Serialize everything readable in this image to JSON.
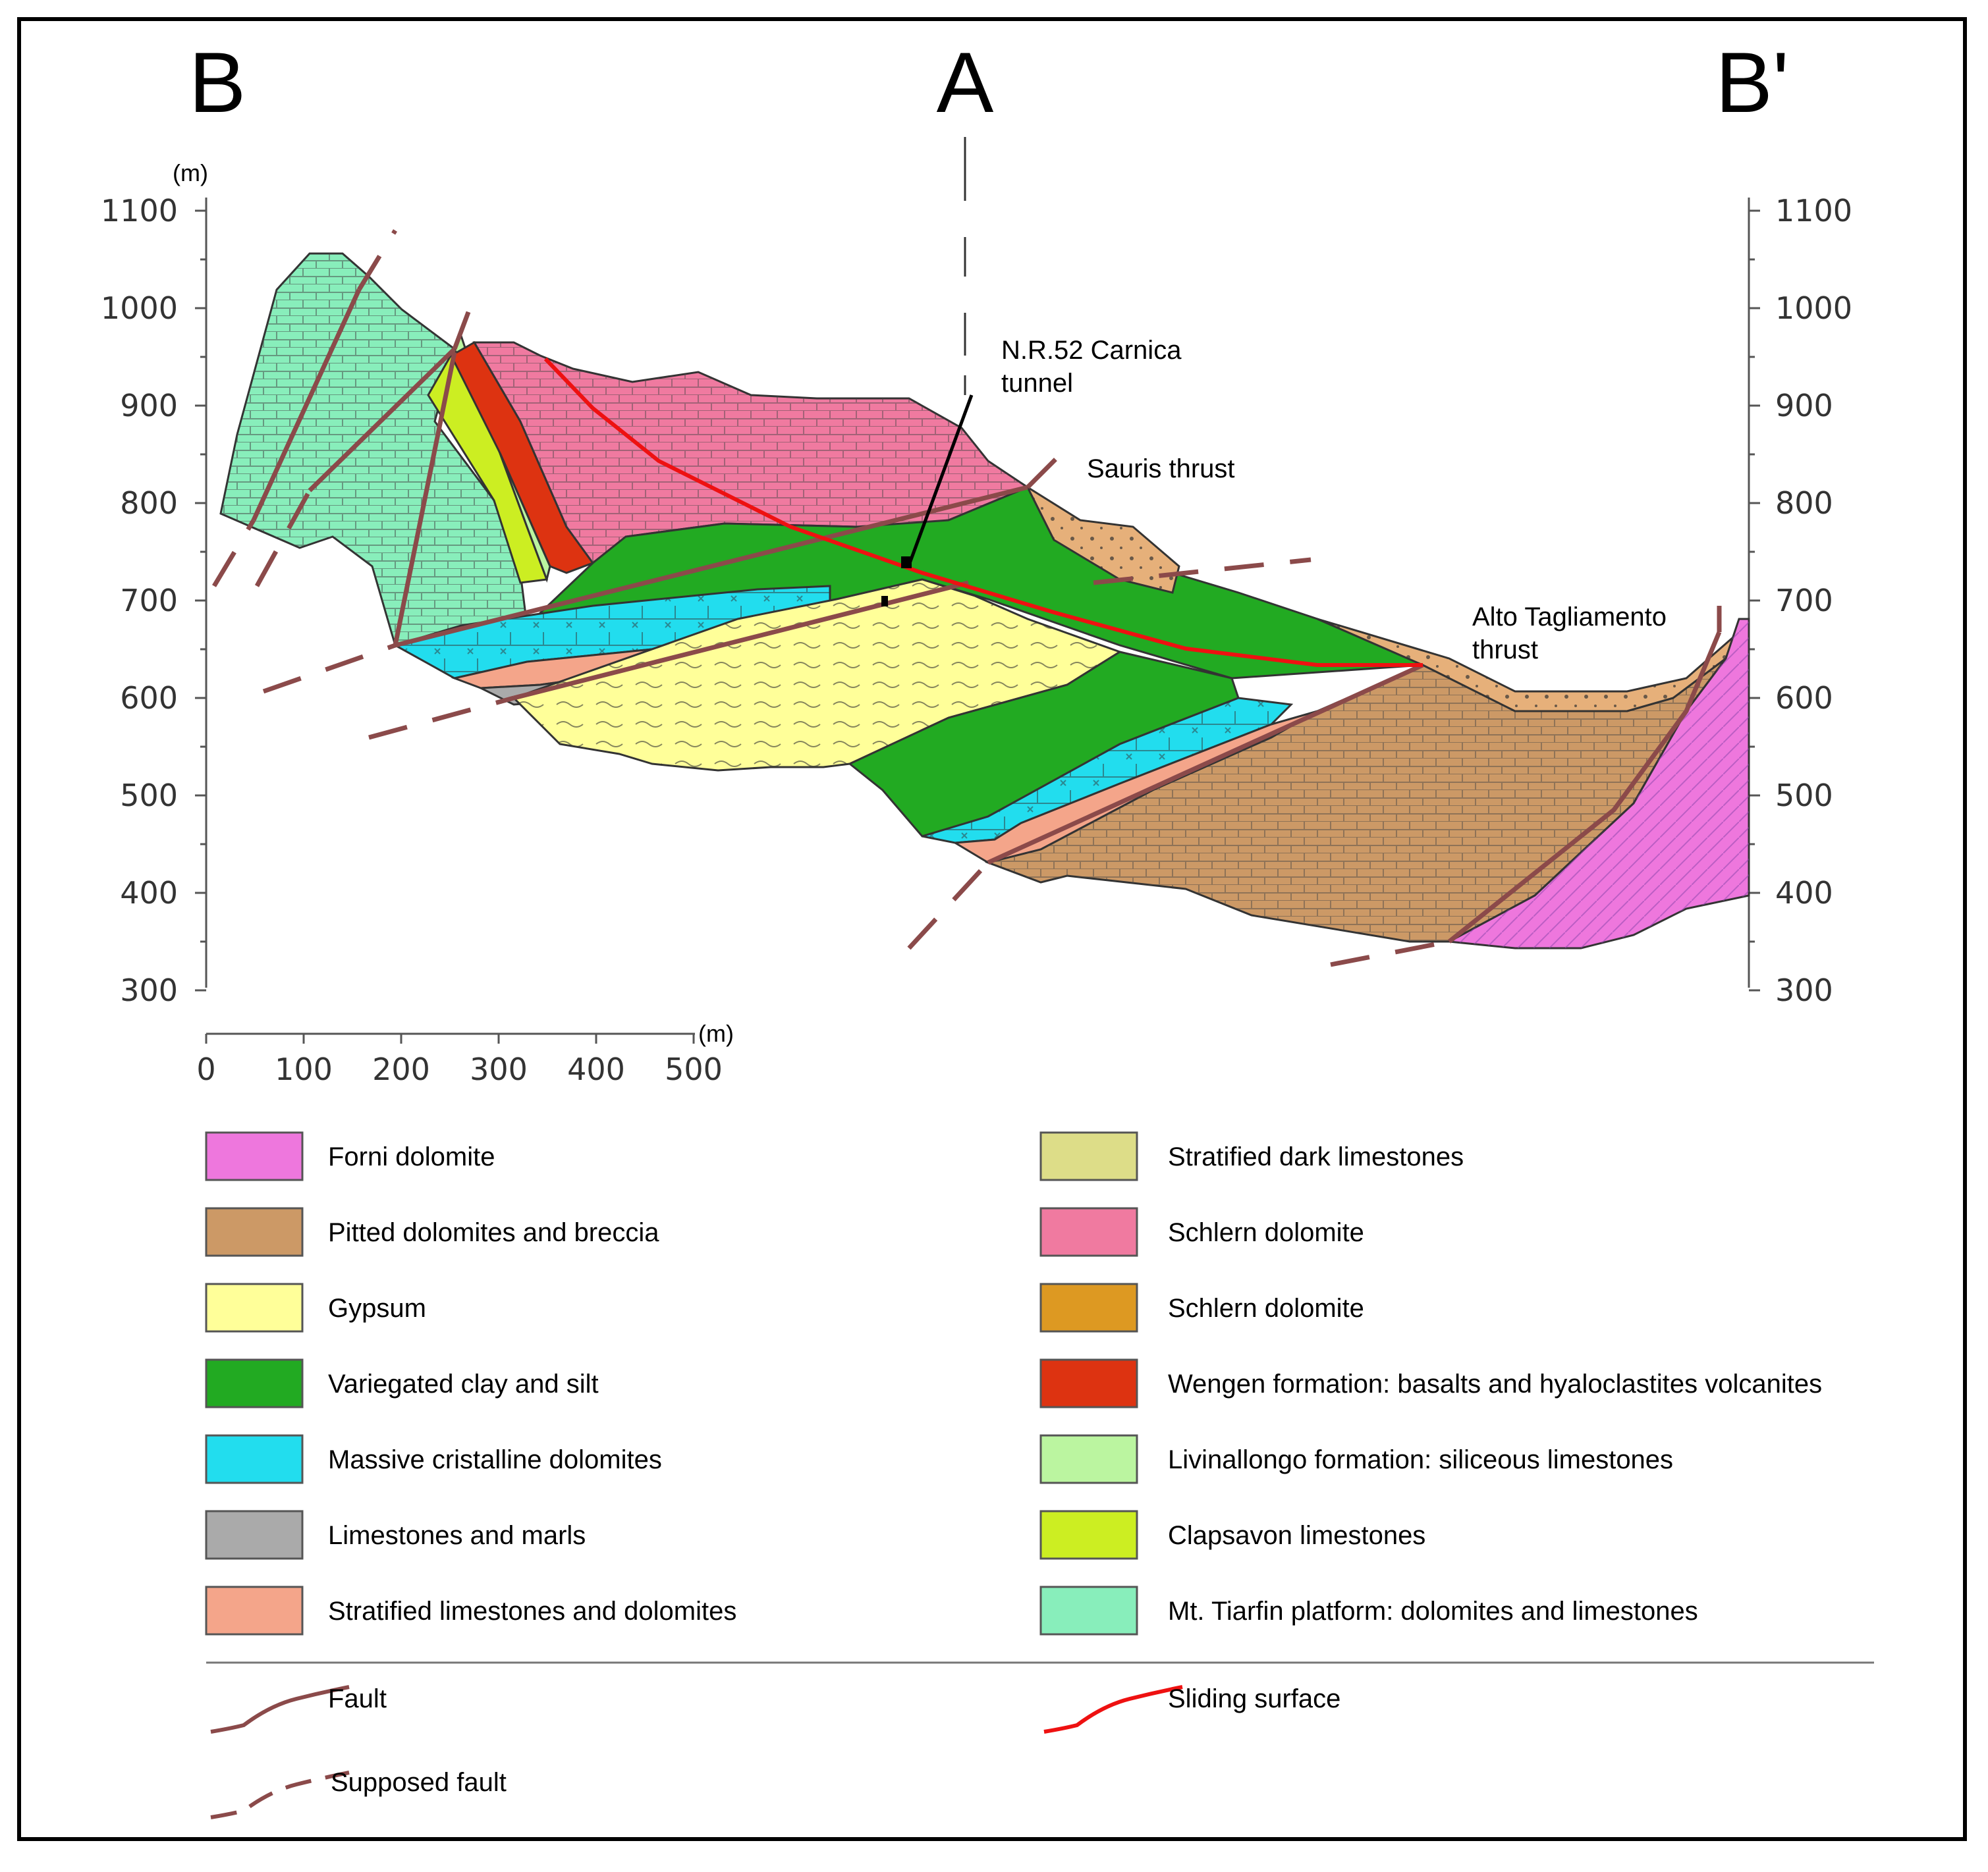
{
  "section": {
    "label_left": "B",
    "label_center": "A",
    "label_right": "B'"
  },
  "elevation_axis": {
    "unit": "(m)",
    "ticks": [
      "1100",
      "1000",
      "900",
      "800",
      "700",
      "600",
      "500",
      "400",
      "300"
    ]
  },
  "distance_scale": {
    "unit": "(m)",
    "ticks": [
      "0",
      "100",
      "200",
      "300",
      "400",
      "500"
    ]
  },
  "annotations": {
    "tunnel_line1": "N.R.52 Carnica",
    "tunnel_line2": "tunnel",
    "sauris": "Sauris thrust",
    "alto_line1": "Alto Tagliamento",
    "alto_line2": "thrust"
  },
  "legend": {
    "left": [
      {
        "label": "Forni dolomite",
        "color": "#ee77dd"
      },
      {
        "label": "Pitted dolomites and breccia",
        "color": "#cc9966"
      },
      {
        "label": "Gypsum",
        "color": "#ffff99"
      },
      {
        "label": "Variegated clay and silt",
        "color": "#22aa22"
      },
      {
        "label": "Massive cristalline dolomites",
        "color": "#22ddee"
      },
      {
        "label": "Limestones and marls",
        "color": "#aaaaaa"
      },
      {
        "label": "Stratified limestones and dolomites",
        "color": "#f4a58a"
      }
    ],
    "right": [
      {
        "label": "Stratified dark limestones",
        "color": "#dddd88"
      },
      {
        "label": "Schlern dolomite",
        "color": "#f07aa0"
      },
      {
        "label": "Schlern dolomite",
        "color": "#dd9922"
      },
      {
        "label": "Wengen formation: basalts and hyaloclastites volcanites",
        "color": "#dd3311"
      },
      {
        "label": "Livinallongo formation: siliceous limestones",
        "color": "#bbf5a0"
      },
      {
        "label": "Clapsavon limestones",
        "color": "#ccee22"
      },
      {
        "label": "Mt. Tiarfin platform: dolomites and limestones",
        "color": "#88eebb"
      }
    ],
    "lines": {
      "fault": "Fault",
      "sliding": "Sliding surface",
      "supposed": "Supposed fault"
    }
  },
  "colors": {
    "fault": "#8b4a4a",
    "sliding": "#ee1111"
  }
}
